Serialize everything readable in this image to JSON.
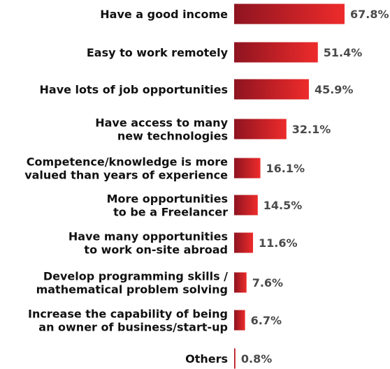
{
  "chart_data": {
    "type": "bar",
    "orientation": "horizontal",
    "title": "",
    "xlabel": "",
    "ylabel": "",
    "value_suffix": "%",
    "xlim": [
      0,
      100
    ],
    "grid": false,
    "legend": "none",
    "colors": {
      "bar_dark": "#8e1420",
      "bar_light": "#ee2b2b",
      "label_text": "#111111",
      "value_text": "#4a4a4a"
    },
    "categories": [
      [
        "Have a good income"
      ],
      [
        "Easy to work remotely"
      ],
      [
        "Have lots of job opportunities"
      ],
      [
        "Have access to many",
        "new technologies"
      ],
      [
        "Competence/knowledge is more",
        "valued than years of experience"
      ],
      [
        "More opportunities",
        "to be a Freelancer"
      ],
      [
        "Have many opportunities",
        "to work on-site abroad"
      ],
      [
        "Develop programming skills /",
        "mathematical problem solving"
      ],
      [
        "Increase the capability of being",
        "an owner of business/start-up"
      ],
      [
        "Others"
      ]
    ],
    "values": [
      67.8,
      51.4,
      45.9,
      32.1,
      16.1,
      14.5,
      11.6,
      7.6,
      6.7,
      0.8
    ],
    "data_labels": [
      "67.8%",
      "51.4%",
      "45.9%",
      "32.1%",
      "16.1%",
      "14.5%",
      "11.6%",
      "7.6%",
      "6.7%",
      "0.8%"
    ]
  }
}
